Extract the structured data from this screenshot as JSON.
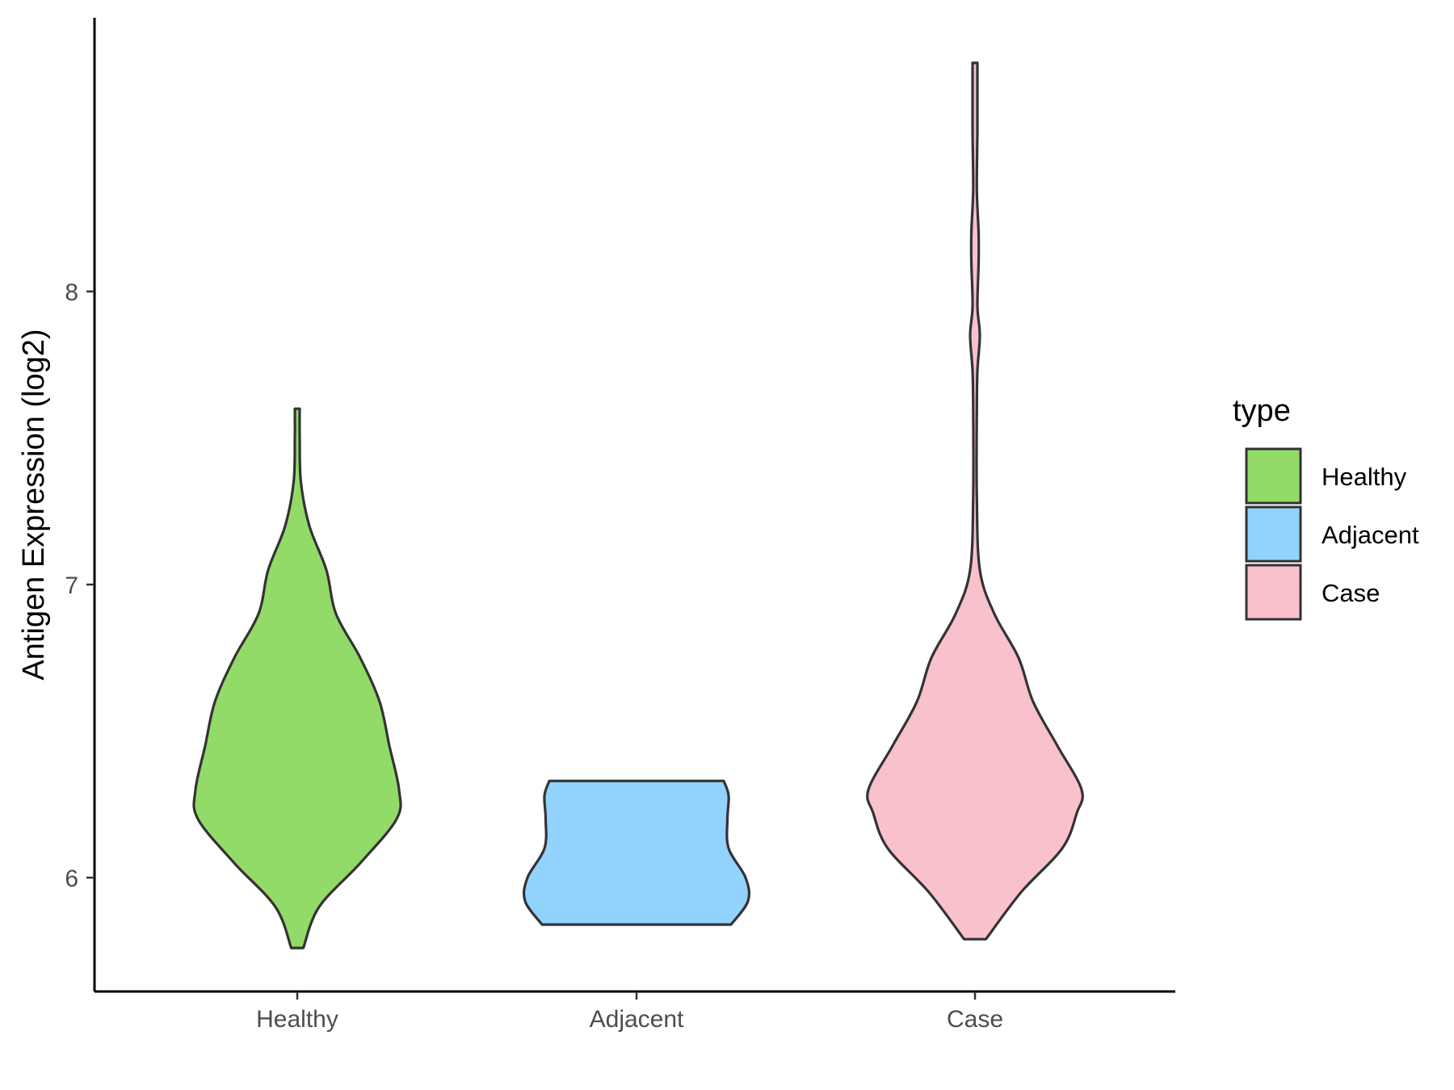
{
  "chart_data": {
    "type": "violin",
    "title": "",
    "xlabel": "",
    "ylabel": "Antigen Expression (log2)",
    "categories": [
      "Healthy",
      "Adjacent",
      "Case"
    ],
    "y_ticks": [
      "6",
      "7",
      "8"
    ],
    "ylim": [
      5.6,
      8.9
    ],
    "grid": false,
    "legend": {
      "title": "type",
      "placement": "right",
      "entries": [
        "Healthy",
        "Adjacent",
        "Case"
      ]
    },
    "colors": {
      "Healthy": "#93db68",
      "Adjacent": "#92d3fd",
      "Case": "#f8c1cc",
      "outline": "#333333"
    },
    "series": [
      {
        "category": "Healthy",
        "min": 5.76,
        "max": 7.6,
        "density": [
          [
            5.76,
            0.05
          ],
          [
            5.9,
            0.18
          ],
          [
            6.05,
            0.52
          ],
          [
            6.2,
            0.82
          ],
          [
            6.3,
            0.84
          ],
          [
            6.45,
            0.76
          ],
          [
            6.6,
            0.68
          ],
          [
            6.75,
            0.52
          ],
          [
            6.9,
            0.32
          ],
          [
            7.05,
            0.24
          ],
          [
            7.2,
            0.1
          ],
          [
            7.35,
            0.03
          ],
          [
            7.5,
            0.02
          ],
          [
            7.6,
            0.02
          ]
        ]
      },
      {
        "category": "Adjacent",
        "min": 5.84,
        "max": 6.33,
        "density": [
          [
            5.84,
            0.78
          ],
          [
            5.92,
            0.92
          ],
          [
            6.0,
            0.9
          ],
          [
            6.1,
            0.76
          ],
          [
            6.2,
            0.75
          ],
          [
            6.28,
            0.76
          ],
          [
            6.33,
            0.72
          ]
        ]
      },
      {
        "category": "Case",
        "min": 5.79,
        "max": 8.78,
        "density": [
          [
            5.79,
            0.09
          ],
          [
            5.95,
            0.38
          ],
          [
            6.1,
            0.72
          ],
          [
            6.22,
            0.84
          ],
          [
            6.3,
            0.88
          ],
          [
            6.45,
            0.68
          ],
          [
            6.6,
            0.48
          ],
          [
            6.75,
            0.36
          ],
          [
            6.9,
            0.16
          ],
          [
            7.05,
            0.04
          ],
          [
            7.3,
            0.015
          ],
          [
            7.6,
            0.015
          ],
          [
            7.73,
            0.02
          ],
          [
            7.85,
            0.04
          ],
          [
            7.95,
            0.02
          ],
          [
            8.1,
            0.03
          ],
          [
            8.2,
            0.03
          ],
          [
            8.35,
            0.015
          ],
          [
            8.55,
            0.02
          ],
          [
            8.7,
            0.02
          ],
          [
            8.78,
            0.02
          ]
        ]
      }
    ]
  }
}
